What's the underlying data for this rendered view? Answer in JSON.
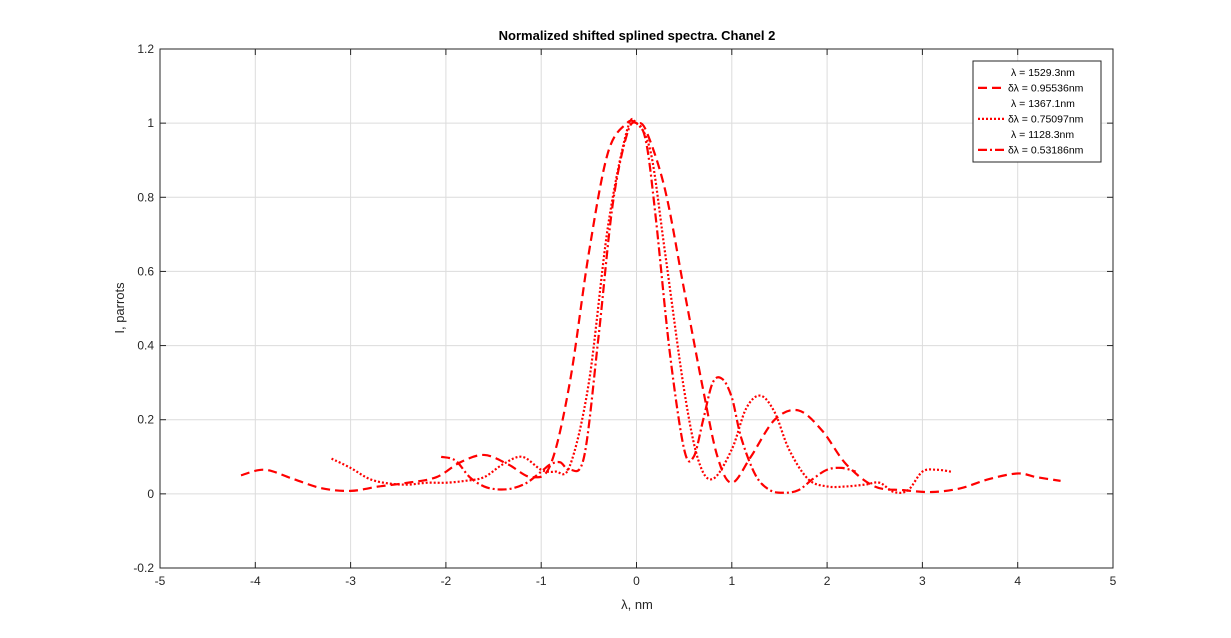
{
  "chart_data": {
    "type": "line",
    "title": "Normalized shifted splined spectra. Chanel 2",
    "xlabel": "λ, nm",
    "ylabel": "I, parrots",
    "xlim": [
      -5,
      5
    ],
    "ylim": [
      -0.2,
      1.2
    ],
    "xticks": [
      -5,
      -4,
      -3,
      -2,
      -1,
      0,
      1,
      2,
      3,
      4,
      5
    ],
    "yticks": [
      -0.2,
      0,
      0.2,
      0.4,
      0.6,
      0.8,
      1,
      1.2
    ],
    "xtick_labels": [
      "-5",
      "-4",
      "-3",
      "-2",
      "-1",
      "0",
      "1",
      "2",
      "3",
      "4",
      "5"
    ],
    "ytick_labels": [
      "-0.2",
      "0",
      "0.2",
      "0.4",
      "0.6",
      "0.8",
      "1",
      "1.2"
    ],
    "grid": true,
    "legend_position": "top-right",
    "color": "#ff0000",
    "series": [
      {
        "name": "λ = 1529.3nm",
        "name2": "δλ = 0.95536nm",
        "style": "dashed",
        "x": [
          -4.15,
          -3.9,
          -3.6,
          -3.3,
          -3.0,
          -2.7,
          -2.4,
          -2.1,
          -1.85,
          -1.6,
          -1.35,
          -1.1,
          -0.9,
          -0.7,
          -0.5,
          -0.3,
          -0.1,
          0.0,
          0.1,
          0.3,
          0.5,
          0.7,
          0.85,
          1.0,
          1.2,
          1.45,
          1.7,
          1.95,
          2.2,
          2.5,
          2.8,
          3.1,
          3.4,
          3.7,
          4.0,
          4.2,
          4.45
        ],
        "y": [
          0.05,
          0.065,
          0.04,
          0.015,
          0.008,
          0.02,
          0.03,
          0.045,
          0.085,
          0.105,
          0.08,
          0.045,
          0.08,
          0.3,
          0.65,
          0.92,
          1.0,
          1.0,
          0.98,
          0.82,
          0.55,
          0.28,
          0.1,
          0.03,
          0.1,
          0.2,
          0.225,
          0.17,
          0.08,
          0.02,
          0.01,
          0.005,
          0.015,
          0.04,
          0.055,
          0.045,
          0.035
        ]
      },
      {
        "name": "λ = 1367.1nm",
        "name2": "δλ = 0.75097nm",
        "style": "dotted",
        "x": [
          -3.2,
          -3.0,
          -2.8,
          -2.6,
          -2.4,
          -2.2,
          -2.0,
          -1.8,
          -1.6,
          -1.4,
          -1.2,
          -1.0,
          -0.85,
          -0.7,
          -0.5,
          -0.3,
          -0.1,
          0.0,
          0.15,
          0.3,
          0.5,
          0.65,
          0.8,
          1.0,
          1.15,
          1.3,
          1.45,
          1.6,
          1.8,
          2.0,
          2.2,
          2.4,
          2.55,
          2.7,
          2.85,
          3.0,
          3.15,
          3.3
        ],
        "y": [
          0.095,
          0.07,
          0.04,
          0.028,
          0.025,
          0.03,
          0.03,
          0.035,
          0.045,
          0.08,
          0.1,
          0.065,
          0.06,
          0.075,
          0.3,
          0.72,
          0.98,
          1.0,
          0.92,
          0.65,
          0.28,
          0.09,
          0.04,
          0.12,
          0.23,
          0.265,
          0.22,
          0.12,
          0.04,
          0.02,
          0.02,
          0.025,
          0.03,
          0.005,
          0.01,
          0.06,
          0.065,
          0.06
        ]
      },
      {
        "name": "λ = 1128.3nm",
        "name2": "δλ = 0.53186nm",
        "style": "dashdot",
        "x": [
          -2.05,
          -1.9,
          -1.75,
          -1.6,
          -1.45,
          -1.3,
          -1.15,
          -1.0,
          -0.9,
          -0.8,
          -0.7,
          -0.55,
          -0.4,
          -0.25,
          -0.1,
          0.0,
          0.1,
          0.2,
          0.35,
          0.5,
          0.6,
          0.7,
          0.8,
          0.9,
          1.0,
          1.1,
          1.25,
          1.4,
          1.55,
          1.7,
          1.85,
          2.0,
          2.15,
          2.3
        ],
        "y": [
          0.1,
          0.09,
          0.045,
          0.02,
          0.012,
          0.015,
          0.03,
          0.06,
          0.08,
          0.085,
          0.065,
          0.1,
          0.42,
          0.78,
          0.97,
          1.0,
          0.95,
          0.75,
          0.38,
          0.12,
          0.1,
          0.2,
          0.3,
          0.31,
          0.26,
          0.15,
          0.05,
          0.01,
          0.003,
          0.01,
          0.04,
          0.065,
          0.07,
          0.06
        ]
      }
    ]
  }
}
